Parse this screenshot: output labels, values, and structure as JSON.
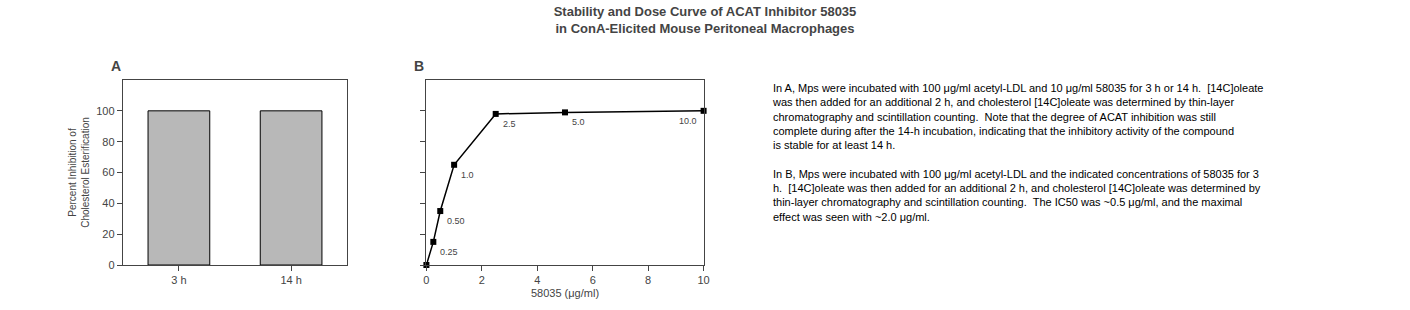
{
  "title": "Stability and Dose Curve of ACAT Inhibitor 58035\nin ConA-Elicited Mouse Peritoneal Macrophages",
  "annotations": [
    "In A, Mps were incubated with 100 μg/ml acetyl-LDL and 10 μg/ml 58035 for 3 h or 14 h.  [14C]oleate was then added for an additional 2 h, and cholesterol [14C]oleate was determined by thin-layer chromatography and scintillation counting.  Note that the degree of ACAT inhibition was still complete during after the 14-h incubation, indicating that the inhibitory activity of the compound is stable for at least 14 h.",
    "In B, Mps were incubated with 100 μg/ml acetyl-LDL and the indicated concentrations of 58035 for 3 h.  [14C]oleate was then added for an additional 2 h, and cholesterol [14C]oleate was determined by thin-layer chromatography and scintillation counting.  The IC50 was ~0.5 μg/ml, and the maximal effect was seen with ~2.0 μg/ml."
  ],
  "chart_data": [
    {
      "type": "bar",
      "title": "A",
      "categories": [
        "3 h",
        "14 h"
      ],
      "values": [
        100,
        100
      ],
      "color": "#b8b8b8",
      "ylim": [
        0,
        120
      ],
      "yticks": [
        0,
        20,
        40,
        60,
        80,
        100
      ],
      "ylabel": "Percent Inhibition of Cholesterol Esterification",
      "grid": false
    },
    {
      "type": "line",
      "title": "B",
      "x": [
        0,
        0.25,
        0.5,
        1.0,
        2.5,
        5.0,
        10.0
      ],
      "values": [
        0,
        15,
        35,
        65,
        98,
        99,
        100
      ],
      "color": "#000000",
      "marker": "square",
      "xlim": [
        0,
        10
      ],
      "xticks": [
        0,
        2,
        4,
        6,
        8,
        10
      ],
      "ylim": [
        0,
        120
      ],
      "yticks": [
        0,
        20,
        40,
        60,
        80,
        100
      ],
      "xlabel": "58035 (μg/ml)",
      "tick_labels": "x",
      "grid": false,
      "annotations": [
        {
          "x": 0.25,
          "y": 15,
          "text": "0.25"
        },
        {
          "x": 0.5,
          "y": 35,
          "text": "0.50"
        },
        {
          "x": 1.0,
          "y": 65,
          "text": "1.0"
        },
        {
          "x": 2.5,
          "y": 98,
          "text": "2.5"
        },
        {
          "x": 5.0,
          "y": 99,
          "text": "5.0"
        },
        {
          "x": 10.0,
          "y": 100,
          "text": "10.0"
        }
      ]
    }
  ]
}
